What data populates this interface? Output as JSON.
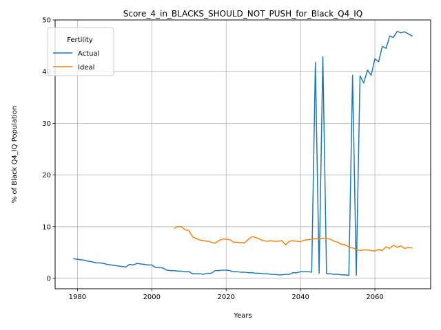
{
  "chart_data": {
    "type": "line",
    "title": "Score_4_in_BLACKS_SHOULD_NOT_PUSH_for_Black_Q4_IQ",
    "xlabel": "Years",
    "ylabel": "% of Black Q4_IQ Population",
    "xlim": [
      1974,
      2075
    ],
    "ylim": [
      -2,
      50
    ],
    "x_ticks": [
      1980,
      2000,
      2020,
      2040,
      2060
    ],
    "y_ticks": [
      0,
      10,
      20,
      30,
      40,
      50
    ],
    "grid": true,
    "legend": {
      "title": "Fertility",
      "placement": "top-left"
    },
    "series": [
      {
        "name": "Actual",
        "color": "#1f77b4",
        "points": [
          [
            1979,
            3.8
          ],
          [
            1980,
            3.7
          ],
          [
            1981,
            3.6
          ],
          [
            1982,
            3.5
          ],
          [
            1983,
            3.3
          ],
          [
            1984,
            3.2
          ],
          [
            1985,
            3.0
          ],
          [
            1986,
            3.0
          ],
          [
            1987,
            2.9
          ],
          [
            1988,
            2.7
          ],
          [
            1989,
            2.6
          ],
          [
            1990,
            2.5
          ],
          [
            1991,
            2.4
          ],
          [
            1992,
            2.3
          ],
          [
            1993,
            2.2
          ],
          [
            1994,
            2.7
          ],
          [
            1995,
            2.6
          ],
          [
            1996,
            2.9
          ],
          [
            1997,
            2.8
          ],
          [
            1998,
            2.7
          ],
          [
            1999,
            2.6
          ],
          [
            2000,
            2.6
          ],
          [
            2001,
            2.1
          ],
          [
            2002,
            2.1
          ],
          [
            2003,
            2.0
          ],
          [
            2004,
            1.6
          ],
          [
            2005,
            1.5
          ],
          [
            2006,
            1.5
          ],
          [
            2007,
            1.4
          ],
          [
            2008,
            1.4
          ],
          [
            2009,
            1.3
          ],
          [
            2010,
            1.3
          ],
          [
            2011,
            0.9
          ],
          [
            2012,
            0.9
          ],
          [
            2013,
            0.9
          ],
          [
            2014,
            0.8
          ],
          [
            2015,
            1.0
          ],
          [
            2016,
            1.0
          ],
          [
            2017,
            1.5
          ],
          [
            2018,
            1.5
          ],
          [
            2019,
            1.6
          ],
          [
            2020,
            1.6
          ],
          [
            2021,
            1.5
          ],
          [
            2022,
            1.3
          ],
          [
            2023,
            1.3
          ],
          [
            2024,
            1.2
          ],
          [
            2025,
            1.2
          ],
          [
            2026,
            1.1
          ],
          [
            2027,
            1.1
          ],
          [
            2028,
            1.0
          ],
          [
            2029,
            1.0
          ],
          [
            2030,
            0.9
          ],
          [
            2031,
            0.9
          ],
          [
            2032,
            0.8
          ],
          [
            2033,
            0.8
          ],
          [
            2034,
            0.7
          ],
          [
            2035,
            0.7
          ],
          [
            2036,
            0.8
          ],
          [
            2037,
            0.8
          ],
          [
            2038,
            1.1
          ],
          [
            2039,
            1.1
          ],
          [
            2040,
            1.3
          ],
          [
            2041,
            1.3
          ],
          [
            2042,
            1.3
          ],
          [
            2043,
            1.2
          ],
          [
            2044,
            41.8
          ],
          [
            2045,
            1.0
          ],
          [
            2046,
            42.9
          ],
          [
            2047,
            0.9
          ],
          [
            2048,
            0.9
          ],
          [
            2049,
            0.8
          ],
          [
            2050,
            0.8
          ],
          [
            2051,
            0.7
          ],
          [
            2052,
            0.7
          ],
          [
            2053,
            0.6
          ],
          [
            2054,
            39.3
          ],
          [
            2055,
            0.6
          ],
          [
            2056,
            39.2
          ],
          [
            2057,
            37.8
          ],
          [
            2058,
            40.3
          ],
          [
            2059,
            39.3
          ],
          [
            2060,
            42.5
          ],
          [
            2061,
            41.9
          ],
          [
            2062,
            44.9
          ],
          [
            2063,
            44.5
          ],
          [
            2064,
            46.9
          ],
          [
            2065,
            46.6
          ],
          [
            2066,
            47.8
          ],
          [
            2067,
            47.5
          ],
          [
            2068,
            47.7
          ],
          [
            2069,
            47.3
          ],
          [
            2070,
            46.9
          ]
        ]
      },
      {
        "name": "Ideal",
        "color": "#ff7f0e",
        "points": [
          [
            2006,
            9.7
          ],
          [
            2007,
            10.0
          ],
          [
            2008,
            10.0
          ],
          [
            2009,
            9.4
          ],
          [
            2010,
            9.2
          ],
          [
            2011,
            8.0
          ],
          [
            2012,
            7.7
          ],
          [
            2013,
            7.4
          ],
          [
            2014,
            7.3
          ],
          [
            2015,
            7.2
          ],
          [
            2016,
            7.0
          ],
          [
            2017,
            6.8
          ],
          [
            2018,
            7.3
          ],
          [
            2019,
            7.6
          ],
          [
            2020,
            7.6
          ],
          [
            2021,
            7.5
          ],
          [
            2022,
            7.0
          ],
          [
            2023,
            7.0
          ],
          [
            2024,
            6.9
          ],
          [
            2025,
            6.9
          ],
          [
            2026,
            7.6
          ],
          [
            2027,
            8.1
          ],
          [
            2028,
            7.9
          ],
          [
            2029,
            7.6
          ],
          [
            2030,
            7.3
          ],
          [
            2031,
            7.2
          ],
          [
            2032,
            7.3
          ],
          [
            2033,
            7.2
          ],
          [
            2034,
            7.2
          ],
          [
            2035,
            7.3
          ],
          [
            2036,
            6.5
          ],
          [
            2037,
            7.2
          ],
          [
            2038,
            7.3
          ],
          [
            2039,
            7.2
          ],
          [
            2040,
            7.1
          ],
          [
            2041,
            7.4
          ],
          [
            2042,
            7.5
          ],
          [
            2043,
            7.6
          ],
          [
            2044,
            7.7
          ],
          [
            2045,
            7.6
          ],
          [
            2046,
            7.8
          ],
          [
            2047,
            7.7
          ],
          [
            2048,
            7.6
          ],
          [
            2049,
            7.2
          ],
          [
            2050,
            7.0
          ],
          [
            2051,
            6.6
          ],
          [
            2052,
            6.5
          ],
          [
            2053,
            6.1
          ],
          [
            2054,
            5.9
          ],
          [
            2055,
            5.6
          ],
          [
            2056,
            5.4
          ],
          [
            2057,
            5.5
          ],
          [
            2058,
            5.5
          ],
          [
            2059,
            5.4
          ],
          [
            2060,
            5.3
          ],
          [
            2061,
            5.6
          ],
          [
            2062,
            5.4
          ],
          [
            2063,
            6.1
          ],
          [
            2064,
            5.8
          ],
          [
            2065,
            6.4
          ],
          [
            2066,
            6.0
          ],
          [
            2067,
            6.3
          ],
          [
            2068,
            5.8
          ],
          [
            2069,
            6.0
          ],
          [
            2070,
            5.9
          ]
        ]
      }
    ]
  }
}
